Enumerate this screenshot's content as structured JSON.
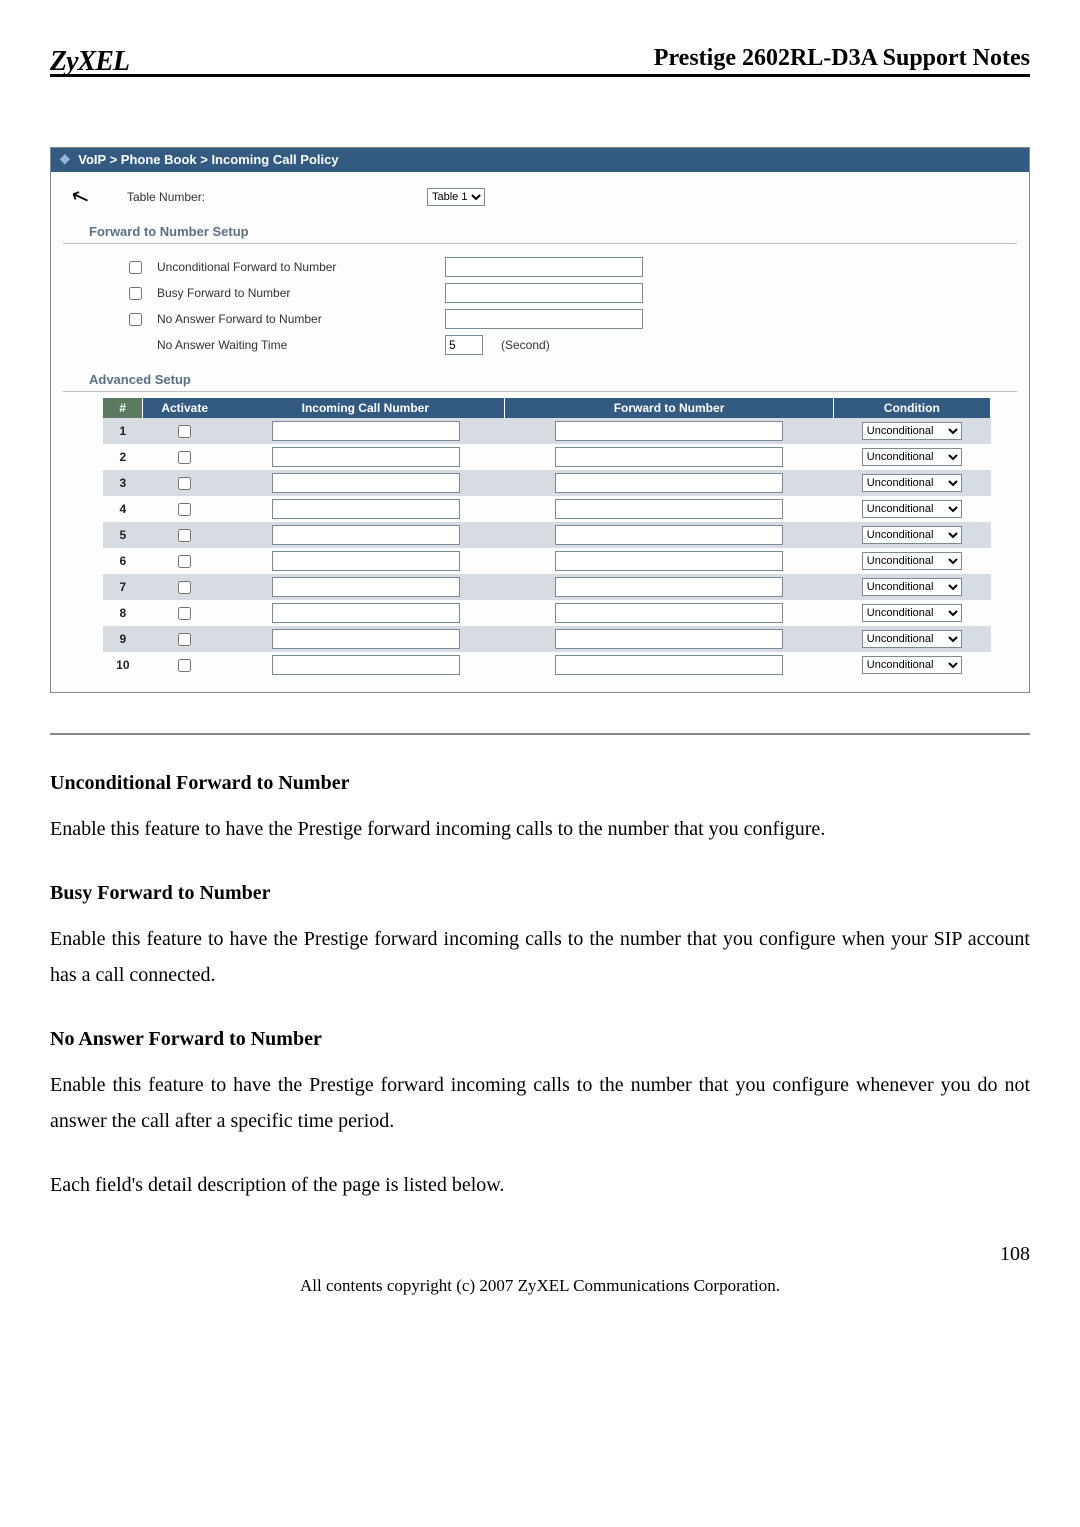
{
  "header": {
    "logo": "ZyXEL",
    "title": "Prestige 2602RL-D3A Support Notes"
  },
  "breadcrumb": {
    "text": "VoIP > Phone Book > Incoming Call Policy"
  },
  "tableNumber": {
    "label": "Table Number:",
    "selected": "Table 1"
  },
  "sections": {
    "forward": "Forward to Number Setup",
    "advanced": "Advanced Setup"
  },
  "forwardSetup": {
    "unconditional_label": "Unconditional Forward to Number",
    "busy_label": "Busy Forward to Number",
    "noanswer_label": "No Answer Forward to Number",
    "waiting_label": "No Answer Waiting Time",
    "waiting_value": "5",
    "waiting_unit": "(Second)"
  },
  "advTable": {
    "header_bg": "#335a80",
    "hash_bg": "#5c7a62",
    "row_alt_bg": "#d6dce2",
    "columns": {
      "hash": "#",
      "activate": "Activate",
      "incoming": "Incoming Call Number",
      "forward": "Forward to Number",
      "condition": "Condition"
    },
    "condition_option": "Unconditional",
    "rows": [
      {
        "n": "1"
      },
      {
        "n": "2"
      },
      {
        "n": "3"
      },
      {
        "n": "4"
      },
      {
        "n": "5"
      },
      {
        "n": "6"
      },
      {
        "n": "7"
      },
      {
        "n": "8"
      },
      {
        "n": "9"
      },
      {
        "n": "10"
      }
    ]
  },
  "doc": {
    "h1": "Unconditional Forward to Number",
    "p1": "Enable this feature to have the Prestige forward incoming calls to the number that you configure.",
    "h2": "Busy Forward to Number",
    "p2": "Enable this feature to have the Prestige forward incoming calls to the number that you configure when your SIP account has a call connected.",
    "h3": "No Answer Forward to Number",
    "p3": "Enable this feature to have the Prestige forward incoming calls to the number that you configure whenever you do not answer the call after a specific time period.",
    "p4": "Each field's detail description of the page is listed below."
  },
  "footer": {
    "page": "108",
    "copyright": "All contents copyright (c) 2007 ZyXEL Communications Corporation."
  }
}
